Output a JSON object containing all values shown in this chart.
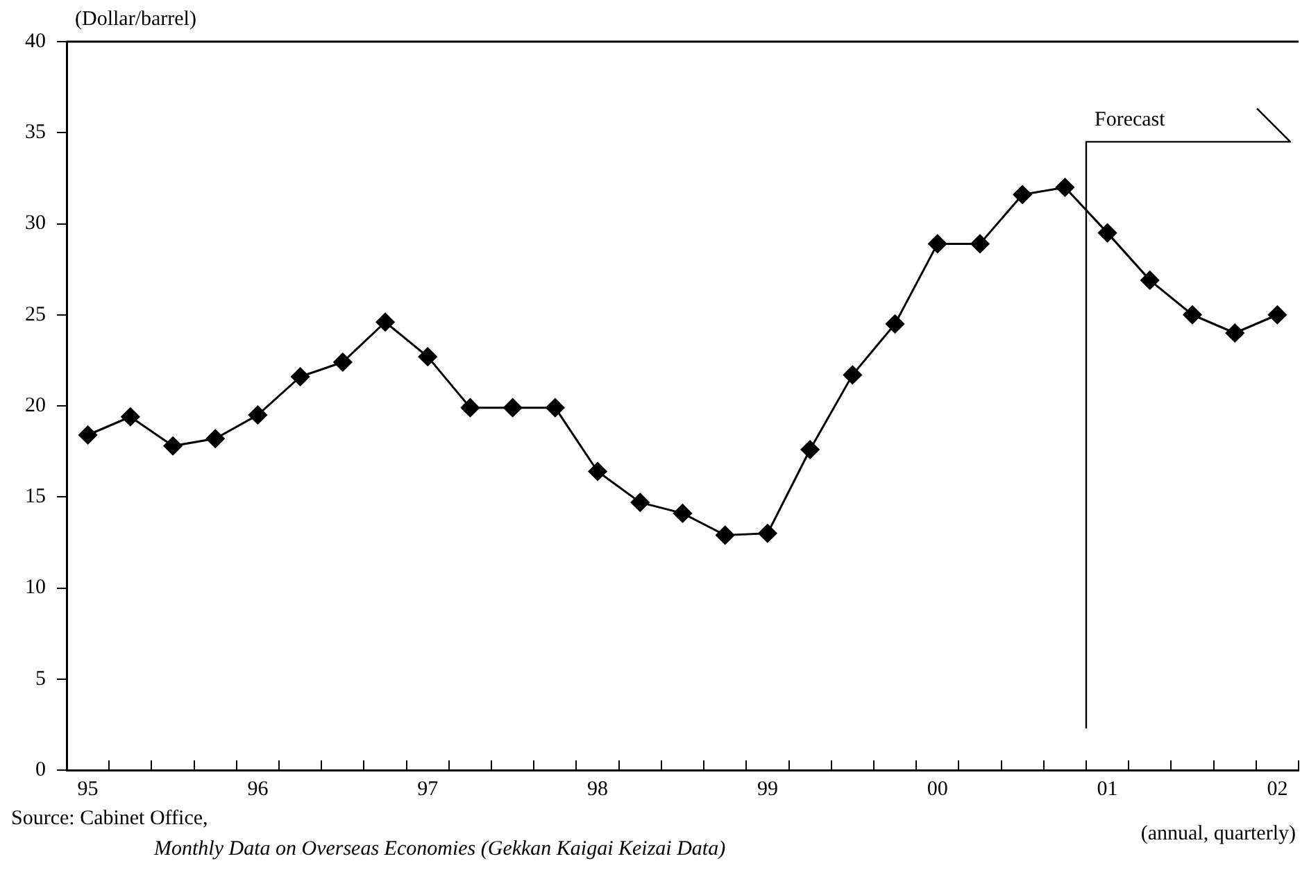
{
  "chart_data": {
    "type": "line",
    "ylabel": "(Dollar/barrel)",
    "xlabel": "(annual, quarterly)",
    "annotations": [
      "Source: Cabinet Office,",
      "Monthly Data on Overseas Economies (Gekkan Kaigai Keizai Data)"
    ],
    "ref_lines": [
      {
        "axis": "x",
        "value": "01",
        "label": "Forecast",
        "color": "#000000"
      }
    ],
    "categories": [
      "95",
      null,
      null,
      null,
      "96",
      null,
      null,
      null,
      "97",
      null,
      null,
      null,
      "98",
      null,
      null,
      null,
      "99",
      null,
      null,
      null,
      "00",
      null,
      null,
      null,
      "01",
      null,
      null,
      null,
      "02"
    ],
    "series": [
      {
        "color": "#000000",
        "values": [
          18.4,
          19.4,
          17.8,
          18.2,
          19.5,
          21.6,
          22.4,
          24.6,
          22.7,
          19.9,
          19.9,
          19.9,
          16.4,
          14.7,
          14.1,
          12.9,
          13.0,
          17.6,
          21.7,
          24.5,
          28.9,
          28.9,
          31.6,
          32.0,
          29.5,
          26.9,
          25.0,
          24.0,
          25.0
        ]
      }
    ],
    "ylim": [
      0,
      40
    ],
    "yticks": [
      0,
      5,
      10,
      15,
      20,
      25,
      30,
      35,
      40
    ],
    "grid": false,
    "legend": false,
    "marker": "diamond",
    "line_style": "solid"
  }
}
